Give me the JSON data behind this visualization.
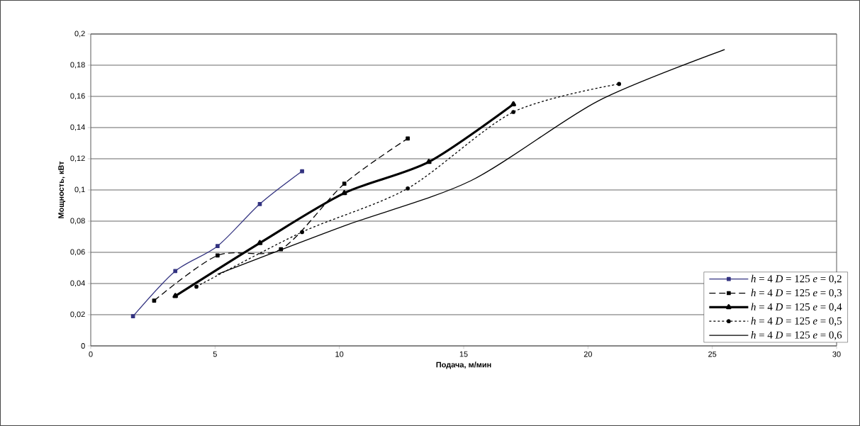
{
  "chart_data": {
    "type": "line",
    "xlabel": "Подача, м/мин",
    "ylabel": "Мощность, кВт",
    "xlim": [
      0,
      30
    ],
    "xticks": [
      0,
      5,
      10,
      15,
      20,
      25,
      30
    ],
    "ylim": [
      0,
      0.2
    ],
    "yticks": [
      0,
      {
        "value": 0.02,
        "label": "0,02"
      },
      {
        "value": 0.04,
        "label": "0,04"
      },
      {
        "value": 0.06,
        "label": "0,06"
      },
      {
        "value": 0.08,
        "label": "0,08"
      },
      {
        "value": 0.1,
        "label": "0,1"
      },
      {
        "value": 0.12,
        "label": "0,12"
      },
      {
        "value": 0.14,
        "label": "0,14"
      },
      {
        "value": 0.16,
        "label": "0,16"
      },
      {
        "value": 0.18,
        "label": "0,18"
      },
      {
        "value": 0.2,
        "label": "0,2"
      }
    ],
    "grid": "y",
    "legend": "bottom right",
    "series": [
      {
        "name": "*h* = 4  *D* = 125  *e* = 0,2",
        "color": "#333380",
        "marker": "square",
        "line_style": "solid",
        "x": [
          1.7,
          3.4,
          5.1,
          6.8,
          8.5
        ],
        "values": [
          0.019,
          0.048,
          0.064,
          0.091,
          0.112
        ]
      },
      {
        "name": "*h* = 4  *D* = 125  *e* = 0,3",
        "color": "#000000",
        "marker": "square",
        "line_style": "dashed",
        "x": [
          2.55,
          5.1,
          7.65,
          10.2,
          12.75
        ],
        "values": [
          0.029,
          0.058,
          0.062,
          0.104,
          0.133
        ]
      },
      {
        "name": "*h* = 4  *D* = 125  *e* = 0,4",
        "color": "#000000",
        "marker": "triangle",
        "line_style": "solid",
        "x": [
          3.4,
          6.8,
          10.2,
          13.6,
          17.0
        ],
        "values": [
          0.032,
          0.066,
          0.098,
          0.118,
          0.155
        ]
      },
      {
        "name": "*h* = 4  *D* = 125  *e* = 0,5",
        "color": "#000000",
        "marker": "circle",
        "line_style": "dotted",
        "x": [
          4.25,
          8.5,
          12.75,
          17.0,
          21.25
        ],
        "values": [
          0.038,
          0.073,
          0.101,
          0.15,
          0.168
        ]
      },
      {
        "name": "*h* = 4  *D* = 125  *e* = 0,6",
        "color": "#000000",
        "marker": "none",
        "line_style": "solid",
        "x": [
          5.1,
          10.2,
          15.3,
          20.4,
          25.5
        ],
        "values": [
          0.046,
          0.077,
          0.106,
          0.157,
          0.19
        ]
      }
    ]
  }
}
